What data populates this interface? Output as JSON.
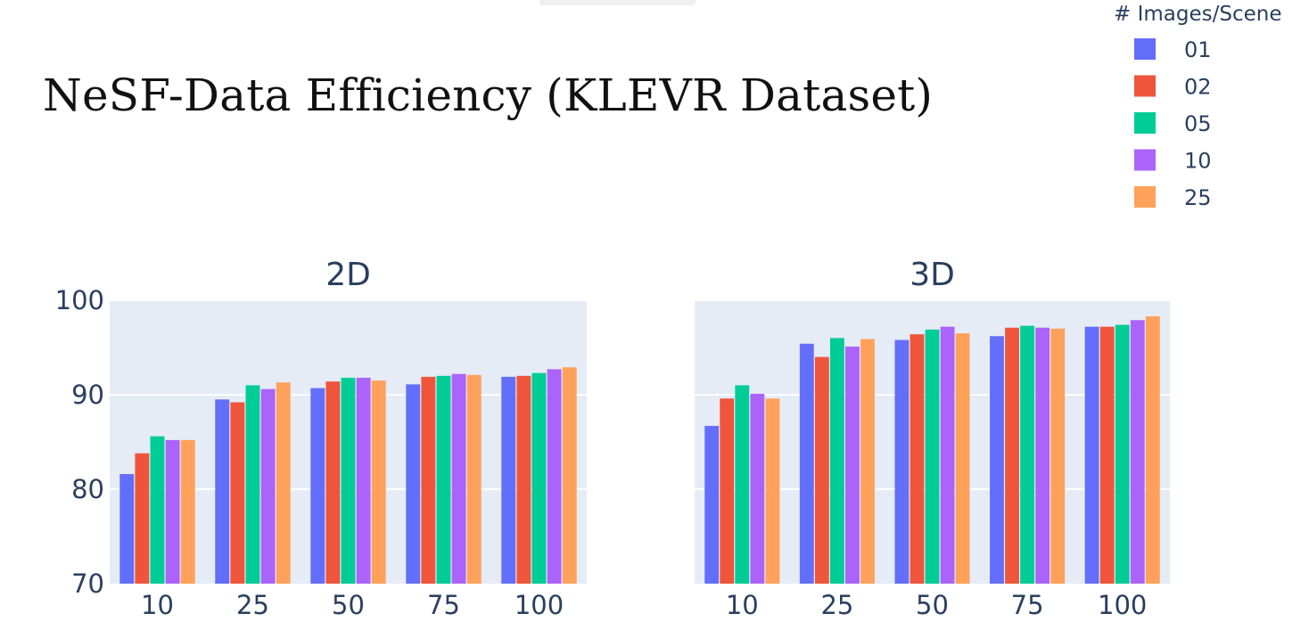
{
  "title": "NeSF-Data Efficiency (KLEVR Dataset)",
  "legend": {
    "title": "# Images/Scene",
    "entries": [
      "01",
      "02",
      "05",
      "10",
      "25"
    ]
  },
  "colors": [
    "#636efa",
    "#ef553b",
    "#00cc96",
    "#ab63fa",
    "#ffa15a"
  ],
  "chart_data": [
    {
      "type": "bar",
      "title": "2D",
      "categories": [
        "10",
        "25",
        "50",
        "75",
        "100"
      ],
      "ylim": [
        70,
        100
      ],
      "yticks": [
        "70",
        "80",
        "90",
        "100"
      ],
      "series": [
        {
          "name": "01",
          "values": [
            81.6,
            89.5,
            90.7,
            91.1,
            91.9
          ]
        },
        {
          "name": "02",
          "values": [
            83.8,
            89.2,
            91.4,
            91.9,
            92.0
          ]
        },
        {
          "name": "05",
          "values": [
            85.6,
            91.0,
            91.8,
            92.0,
            92.3
          ]
        },
        {
          "name": "10",
          "values": [
            85.2,
            90.6,
            91.8,
            92.2,
            92.7
          ]
        },
        {
          "name": "25",
          "values": [
            85.2,
            91.3,
            91.5,
            92.1,
            92.9
          ]
        }
      ]
    },
    {
      "type": "bar",
      "title": "3D",
      "categories": [
        "10",
        "25",
        "50",
        "75",
        "100"
      ],
      "ylim": [
        70,
        100
      ],
      "series": [
        {
          "name": "01",
          "values": [
            86.7,
            95.4,
            95.8,
            96.2,
            97.2
          ]
        },
        {
          "name": "02",
          "values": [
            89.6,
            94.0,
            96.4,
            97.1,
            97.2
          ]
        },
        {
          "name": "05",
          "values": [
            91.0,
            96.0,
            96.9,
            97.3,
            97.4
          ]
        },
        {
          "name": "10",
          "values": [
            90.1,
            95.1,
            97.2,
            97.1,
            97.9
          ]
        },
        {
          "name": "25",
          "values": [
            89.6,
            95.9,
            96.5,
            97.0,
            98.3
          ]
        }
      ]
    }
  ]
}
